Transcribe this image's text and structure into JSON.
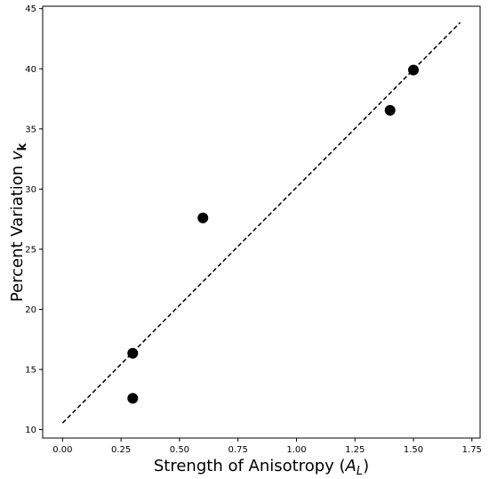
{
  "chart_data": {
    "type": "scatter",
    "xlabel": "Strength of Anisotropy (A_L)",
    "xlabel_prefix": "Strength of Anisotropy (",
    "xlabel_symbol": "A",
    "xlabel_subscript": "L",
    "xlabel_suffix": ")",
    "ylabel": "Percent Variation v_k",
    "ylabel_prefix": "Percent Variation ",
    "ylabel_symbol": "v",
    "ylabel_subscript": "k",
    "xlim": [
      -0.085,
      1.785
    ],
    "ylim": [
      9.3,
      45.2
    ],
    "xticks": [
      0.0,
      0.25,
      0.5,
      0.75,
      1.0,
      1.25,
      1.5,
      1.75
    ],
    "xtick_labels": [
      "0.00",
      "0.25",
      "0.50",
      "0.75",
      "1.00",
      "1.25",
      "1.50",
      "1.75"
    ],
    "yticks": [
      10,
      15,
      20,
      25,
      30,
      35,
      40,
      45
    ],
    "ytick_labels": [
      "10",
      "15",
      "20",
      "25",
      "30",
      "35",
      "40",
      "45"
    ],
    "grid": false,
    "series": [
      {
        "kind": "points",
        "color": "#000000",
        "points": [
          {
            "x": 0.3,
            "y": 16.35
          },
          {
            "x": 0.3,
            "y": 12.6
          },
          {
            "x": 0.6,
            "y": 27.6
          },
          {
            "x": 1.4,
            "y": 36.55
          },
          {
            "x": 1.5,
            "y": 39.9
          }
        ]
      },
      {
        "kind": "fit-line",
        "color": "#000000",
        "dashed": true,
        "x": [
          0.0,
          1.7
        ],
        "y": [
          10.55,
          43.85
        ]
      }
    ]
  }
}
